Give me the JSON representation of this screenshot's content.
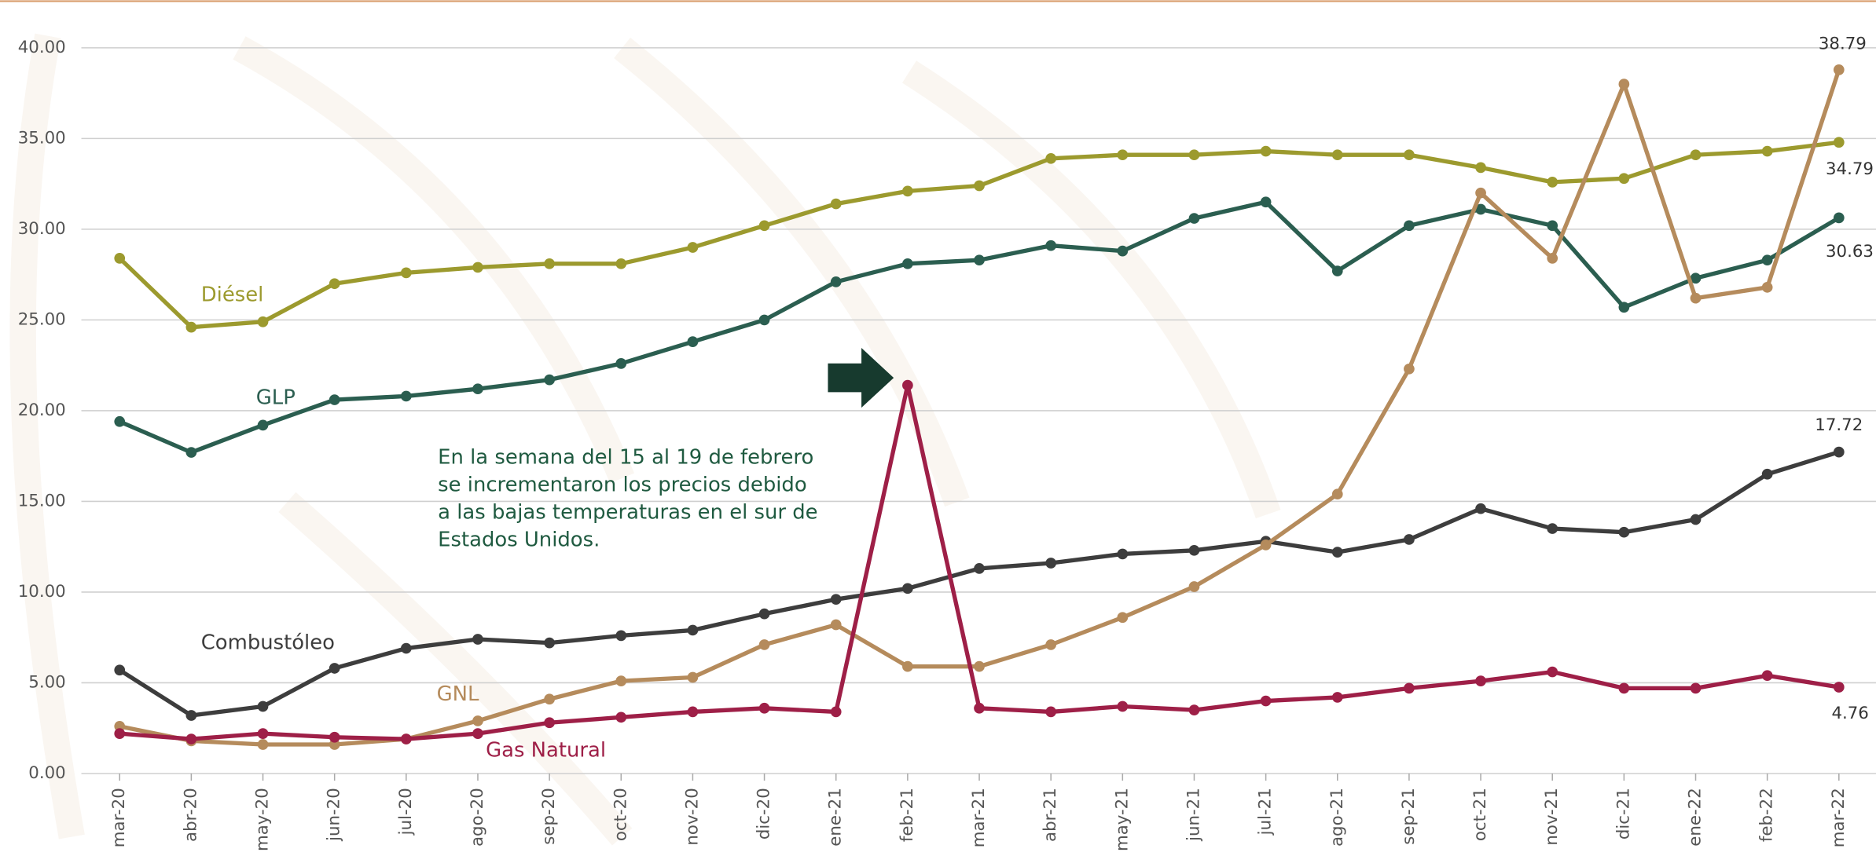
{
  "chart_data": {
    "type": "line",
    "categories": [
      "mar-20",
      "abr-20",
      "may-20",
      "jun-20",
      "jul-20",
      "ago-20",
      "sep-20",
      "oct-20",
      "nov-20",
      "dic-20",
      "ene-21",
      "feb-21",
      "mar-21",
      "abr-21",
      "may-21",
      "jun-21",
      "jul-21",
      "ago-21",
      "sep-21",
      "oct-21",
      "nov-21",
      "dic-21",
      "ene-22",
      "feb-22",
      "mar-22"
    ],
    "series": [
      {
        "name": "Diésel",
        "color": "#9c9a2e",
        "values": [
          28.4,
          24.6,
          24.9,
          27.0,
          27.6,
          27.9,
          28.1,
          28.1,
          29.0,
          30.2,
          31.4,
          32.1,
          32.4,
          33.9,
          34.1,
          34.1,
          34.3,
          34.1,
          34.1,
          33.4,
          32.6,
          32.8,
          34.1,
          34.3,
          34.79
        ]
      },
      {
        "name": "GLP",
        "color": "#2b5e50",
        "values": [
          19.4,
          17.7,
          19.2,
          20.6,
          20.8,
          21.2,
          21.7,
          22.6,
          23.8,
          25.0,
          27.1,
          28.1,
          28.3,
          29.1,
          28.8,
          30.6,
          31.5,
          27.7,
          30.2,
          31.1,
          30.2,
          25.7,
          27.3,
          28.3,
          30.63
        ]
      },
      {
        "name": "Combustóleo",
        "color": "#3d3d3d",
        "values": [
          5.7,
          3.2,
          3.7,
          5.8,
          6.9,
          7.4,
          7.2,
          7.6,
          7.9,
          8.8,
          9.6,
          10.2,
          11.3,
          11.6,
          12.1,
          12.3,
          12.8,
          12.2,
          12.9,
          14.6,
          13.5,
          13.3,
          14.0,
          16.5,
          17.72
        ]
      },
      {
        "name": "GNL",
        "color": "#b58b5c",
        "values": [
          2.6,
          1.8,
          1.6,
          1.6,
          1.9,
          2.9,
          4.1,
          5.1,
          5.3,
          7.1,
          8.2,
          5.9,
          5.9,
          7.1,
          8.6,
          10.3,
          12.6,
          15.4,
          22.3,
          32.0,
          28.4,
          38.0,
          26.2,
          26.8,
          38.79
        ]
      },
      {
        "name": "Gas Natural",
        "color": "#9e1f47",
        "values": [
          2.2,
          1.9,
          2.2,
          2.0,
          1.9,
          2.2,
          2.8,
          3.1,
          3.4,
          3.6,
          3.4,
          21.4,
          3.6,
          3.4,
          3.7,
          3.5,
          4.0,
          4.2,
          4.7,
          5.1,
          5.6,
          4.7,
          4.7,
          5.4,
          4.76
        ]
      }
    ],
    "ylim": [
      0,
      40
    ],
    "yticks": [
      {
        "value": 0,
        "label": "0.00"
      },
      {
        "value": 5,
        "label": "5.00"
      },
      {
        "value": 10,
        "label": "10.00"
      },
      {
        "value": 15,
        "label": "15.00"
      },
      {
        "value": 20,
        "label": "20.00"
      },
      {
        "value": 25,
        "label": "25.00"
      },
      {
        "value": 30,
        "label": "30.00"
      },
      {
        "value": 35,
        "label": "35.00"
      },
      {
        "value": 40,
        "label": "40.00"
      }
    ],
    "grid": true,
    "annotation": [
      "En la semana del 15 al 19 de febrero",
      "se incrementaron los precios debido",
      "a las bajas temperaturas en el sur de",
      "Estados Unidos."
    ]
  }
}
